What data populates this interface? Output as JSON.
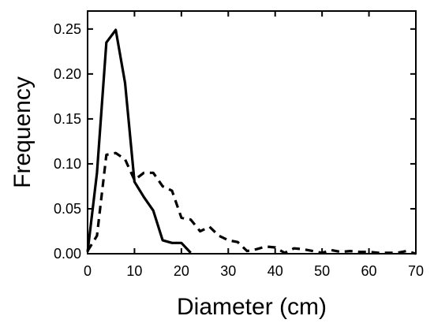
{
  "chart_data": {
    "type": "line",
    "title": "",
    "xlabel": "Diameter (cm)",
    "ylabel": "Frequency",
    "xlim": [
      0,
      70
    ],
    "ylim": [
      0,
      0.27
    ],
    "x_ticks": [
      0,
      10,
      20,
      30,
      40,
      50,
      60,
      70
    ],
    "x_tick_labels": [
      "0",
      "10",
      "20",
      "30",
      "40",
      "50",
      "60",
      "70"
    ],
    "y_ticks": [
      0,
      0.05,
      0.1,
      0.15,
      0.2,
      0.25
    ],
    "y_tick_labels": [
      "0.00",
      "0.05",
      "0.10",
      "0.15",
      "0.20",
      "0.25"
    ],
    "grid": false,
    "legend": "none",
    "series": [
      {
        "style": "solid",
        "color": "#000000",
        "x": [
          0,
          2,
          4,
          6,
          8,
          10,
          12,
          14,
          16,
          18,
          20,
          22
        ],
        "y": [
          0.002,
          0.09,
          0.235,
          0.249,
          0.19,
          0.08,
          0.063,
          0.048,
          0.015,
          0.012,
          0.012,
          0.001
        ]
      },
      {
        "style": "dashed",
        "color": "#000000",
        "x": [
          0,
          2,
          4,
          6,
          8,
          10,
          12,
          14,
          16,
          18,
          20,
          22,
          24,
          26,
          28,
          30,
          32,
          34,
          36,
          38,
          40,
          42,
          44,
          46,
          48,
          50,
          52,
          54,
          56,
          58,
          60,
          62,
          64,
          66,
          68,
          70
        ],
        "y": [
          0.003,
          0.02,
          0.11,
          0.112,
          0.105,
          0.082,
          0.09,
          0.09,
          0.075,
          0.07,
          0.04,
          0.038,
          0.025,
          0.03,
          0.02,
          0.015,
          0.013,
          0.003,
          0.005,
          0.008,
          0.007,
          0.001,
          0.006,
          0.005,
          0.003,
          0.001,
          0.004,
          0.002,
          0.003,
          0.002,
          0.002,
          0.001,
          0.001,
          0.001,
          0.003,
          0.0
        ]
      }
    ]
  }
}
